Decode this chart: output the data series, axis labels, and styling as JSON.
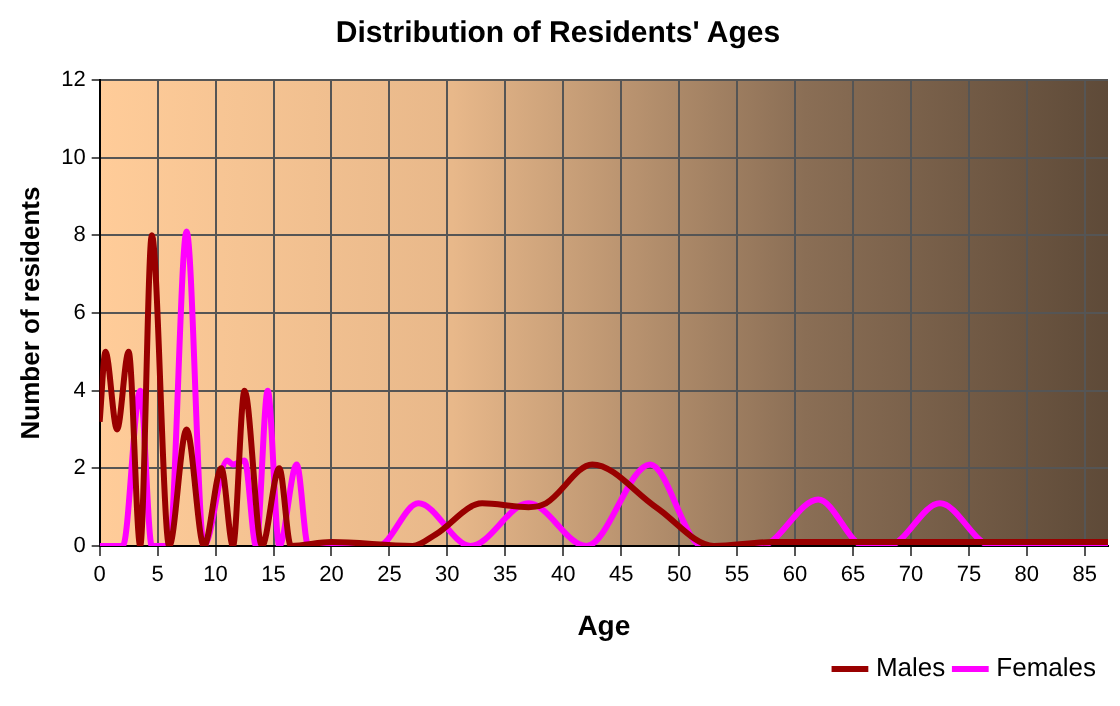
{
  "chart_data": {
    "type": "line",
    "title": "Distribution of Residents' Ages",
    "xlabel": "Age",
    "ylabel": "Number of residents",
    "xlim": [
      0,
      87
    ],
    "xticks": [
      0,
      5,
      10,
      15,
      20,
      25,
      30,
      35,
      40,
      45,
      50,
      55,
      60,
      65,
      70,
      75,
      80,
      85
    ],
    "ylim": [
      0,
      12
    ],
    "yticks": [
      0,
      2,
      4,
      6,
      8,
      10,
      12
    ],
    "grid": true,
    "legend": "bottom right",
    "marker": "none",
    "line_style": "solid",
    "series": [
      {
        "name": "Males",
        "color": "#990000",
        "x": [
          0,
          0.5,
          1.5,
          2.5,
          3.5,
          4.5,
          6,
          7.5,
          9,
          10.5,
          11.5,
          12.5,
          14,
          15.5,
          16.5,
          20,
          27,
          29,
          33,
          37,
          38.5,
          42.5,
          48,
          53,
          58,
          87
        ],
        "values": [
          3.2,
          5,
          3,
          5,
          0,
          8,
          0,
          3,
          0,
          2,
          0,
          4,
          0,
          2,
          0,
          0.1,
          0,
          0.3,
          1.1,
          1,
          1.1,
          2.1,
          1,
          0,
          0.1,
          0.1
        ]
      },
      {
        "name": "Females",
        "color": "#ff00ff",
        "x": [
          0,
          2,
          3.5,
          4.5,
          6,
          7.5,
          9,
          11,
          11.5,
          12.5,
          13.5,
          14.5,
          15.5,
          17,
          18,
          24,
          27.5,
          32,
          37,
          42,
          47.5,
          52,
          57,
          62,
          66,
          68,
          72.5,
          77,
          87
        ],
        "values": [
          0,
          0,
          4,
          0,
          0,
          8.1,
          0,
          2.2,
          2.1,
          2.2,
          0,
          4,
          0,
          2.1,
          0,
          0,
          1.1,
          0,
          1.1,
          0,
          2.1,
          0,
          0,
          1.2,
          0,
          0,
          1.1,
          0,
          0
        ]
      }
    ]
  }
}
